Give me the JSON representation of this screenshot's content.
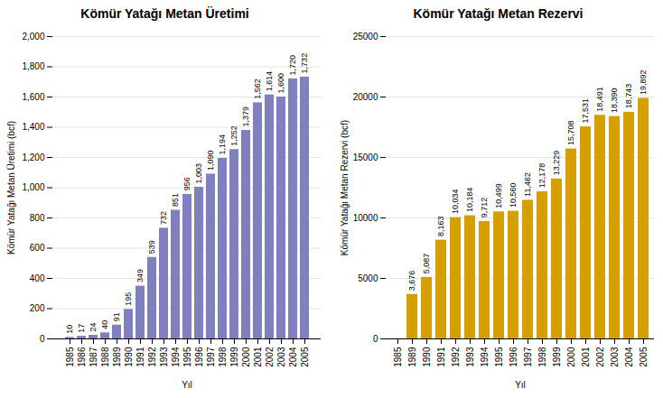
{
  "chart_data": [
    {
      "type": "bar",
      "title": "Kömür Yatağı Metan Üretimi",
      "x_label": "Yıl",
      "y_label": "Kömür Yatağı Metan Üretimi (bcf)",
      "categories": [
        "1985",
        "1986",
        "1987",
        "1988",
        "1989",
        "1990",
        "1991",
        "1992",
        "1993",
        "1994",
        "1995",
        "1996",
        "1997",
        "1998",
        "1999",
        "2000",
        "2001",
        "2002",
        "2003",
        "2004",
        "2005"
      ],
      "values": [
        10,
        17,
        24,
        40,
        91,
        195,
        349,
        539,
        732,
        851,
        956,
        1003,
        1090,
        1194,
        1252,
        1379,
        1562,
        1614,
        1600,
        1720,
        1732
      ],
      "value_labels": [
        "10",
        "17",
        "24",
        "40",
        "91",
        "195",
        "349",
        "539",
        "732",
        "851",
        "956",
        "1,003",
        "1,090",
        "1,194",
        "1,252",
        "1,379",
        "1,562",
        "1,614",
        "1,600",
        "1,720",
        "1,732"
      ],
      "color": "#8080c0",
      "ylim": [
        0,
        2000
      ],
      "yticks": [
        0,
        200,
        400,
        600,
        800,
        {
          "value": 1000,
          "label": "1,000"
        },
        {
          "value": 1200,
          "label": "1,200"
        },
        {
          "value": 1400,
          "label": "1,400"
        },
        {
          "value": 1600,
          "label": "1,600"
        },
        {
          "value": 1800,
          "label": "1,800"
        },
        {
          "value": 2000,
          "label": "2,000"
        }
      ],
      "grid": true,
      "data_labels": true
    },
    {
      "type": "bar",
      "title": "Kömür Yatağı Metan Rezervi",
      "x_label": "Yıl",
      "y_label": "Kömür Yatağı Metan Rezervi (bcf)",
      "categories": [
        "1985",
        "1989",
        "1990",
        "1991",
        "1992",
        "1993",
        "1994",
        "1995",
        "1996",
        "1997",
        "1998",
        "1999",
        "2000",
        "2001",
        "2002",
        "2003",
        "2004",
        "2005"
      ],
      "values": [
        0,
        3676,
        5087,
        8163,
        10034,
        10184,
        9712,
        10499,
        10560,
        11462,
        12178,
        13229,
        15708,
        17531,
        18491,
        18390,
        18743,
        19892
      ],
      "value_labels": [
        null,
        "3,676",
        "5,087",
        "8,163",
        "10,034",
        "10,184",
        "9,712",
        "10,499",
        "10,560",
        "11,462",
        "12,178",
        "13,229",
        "15,708",
        "17,531",
        "18,491",
        "18,390",
        "18,743",
        "19,892"
      ],
      "color": "#d4a000",
      "ylim": [
        0,
        25000
      ],
      "yticks": [
        0,
        5000,
        10000,
        15000,
        20000,
        25000
      ],
      "grid": true,
      "data_labels": true
    }
  ]
}
